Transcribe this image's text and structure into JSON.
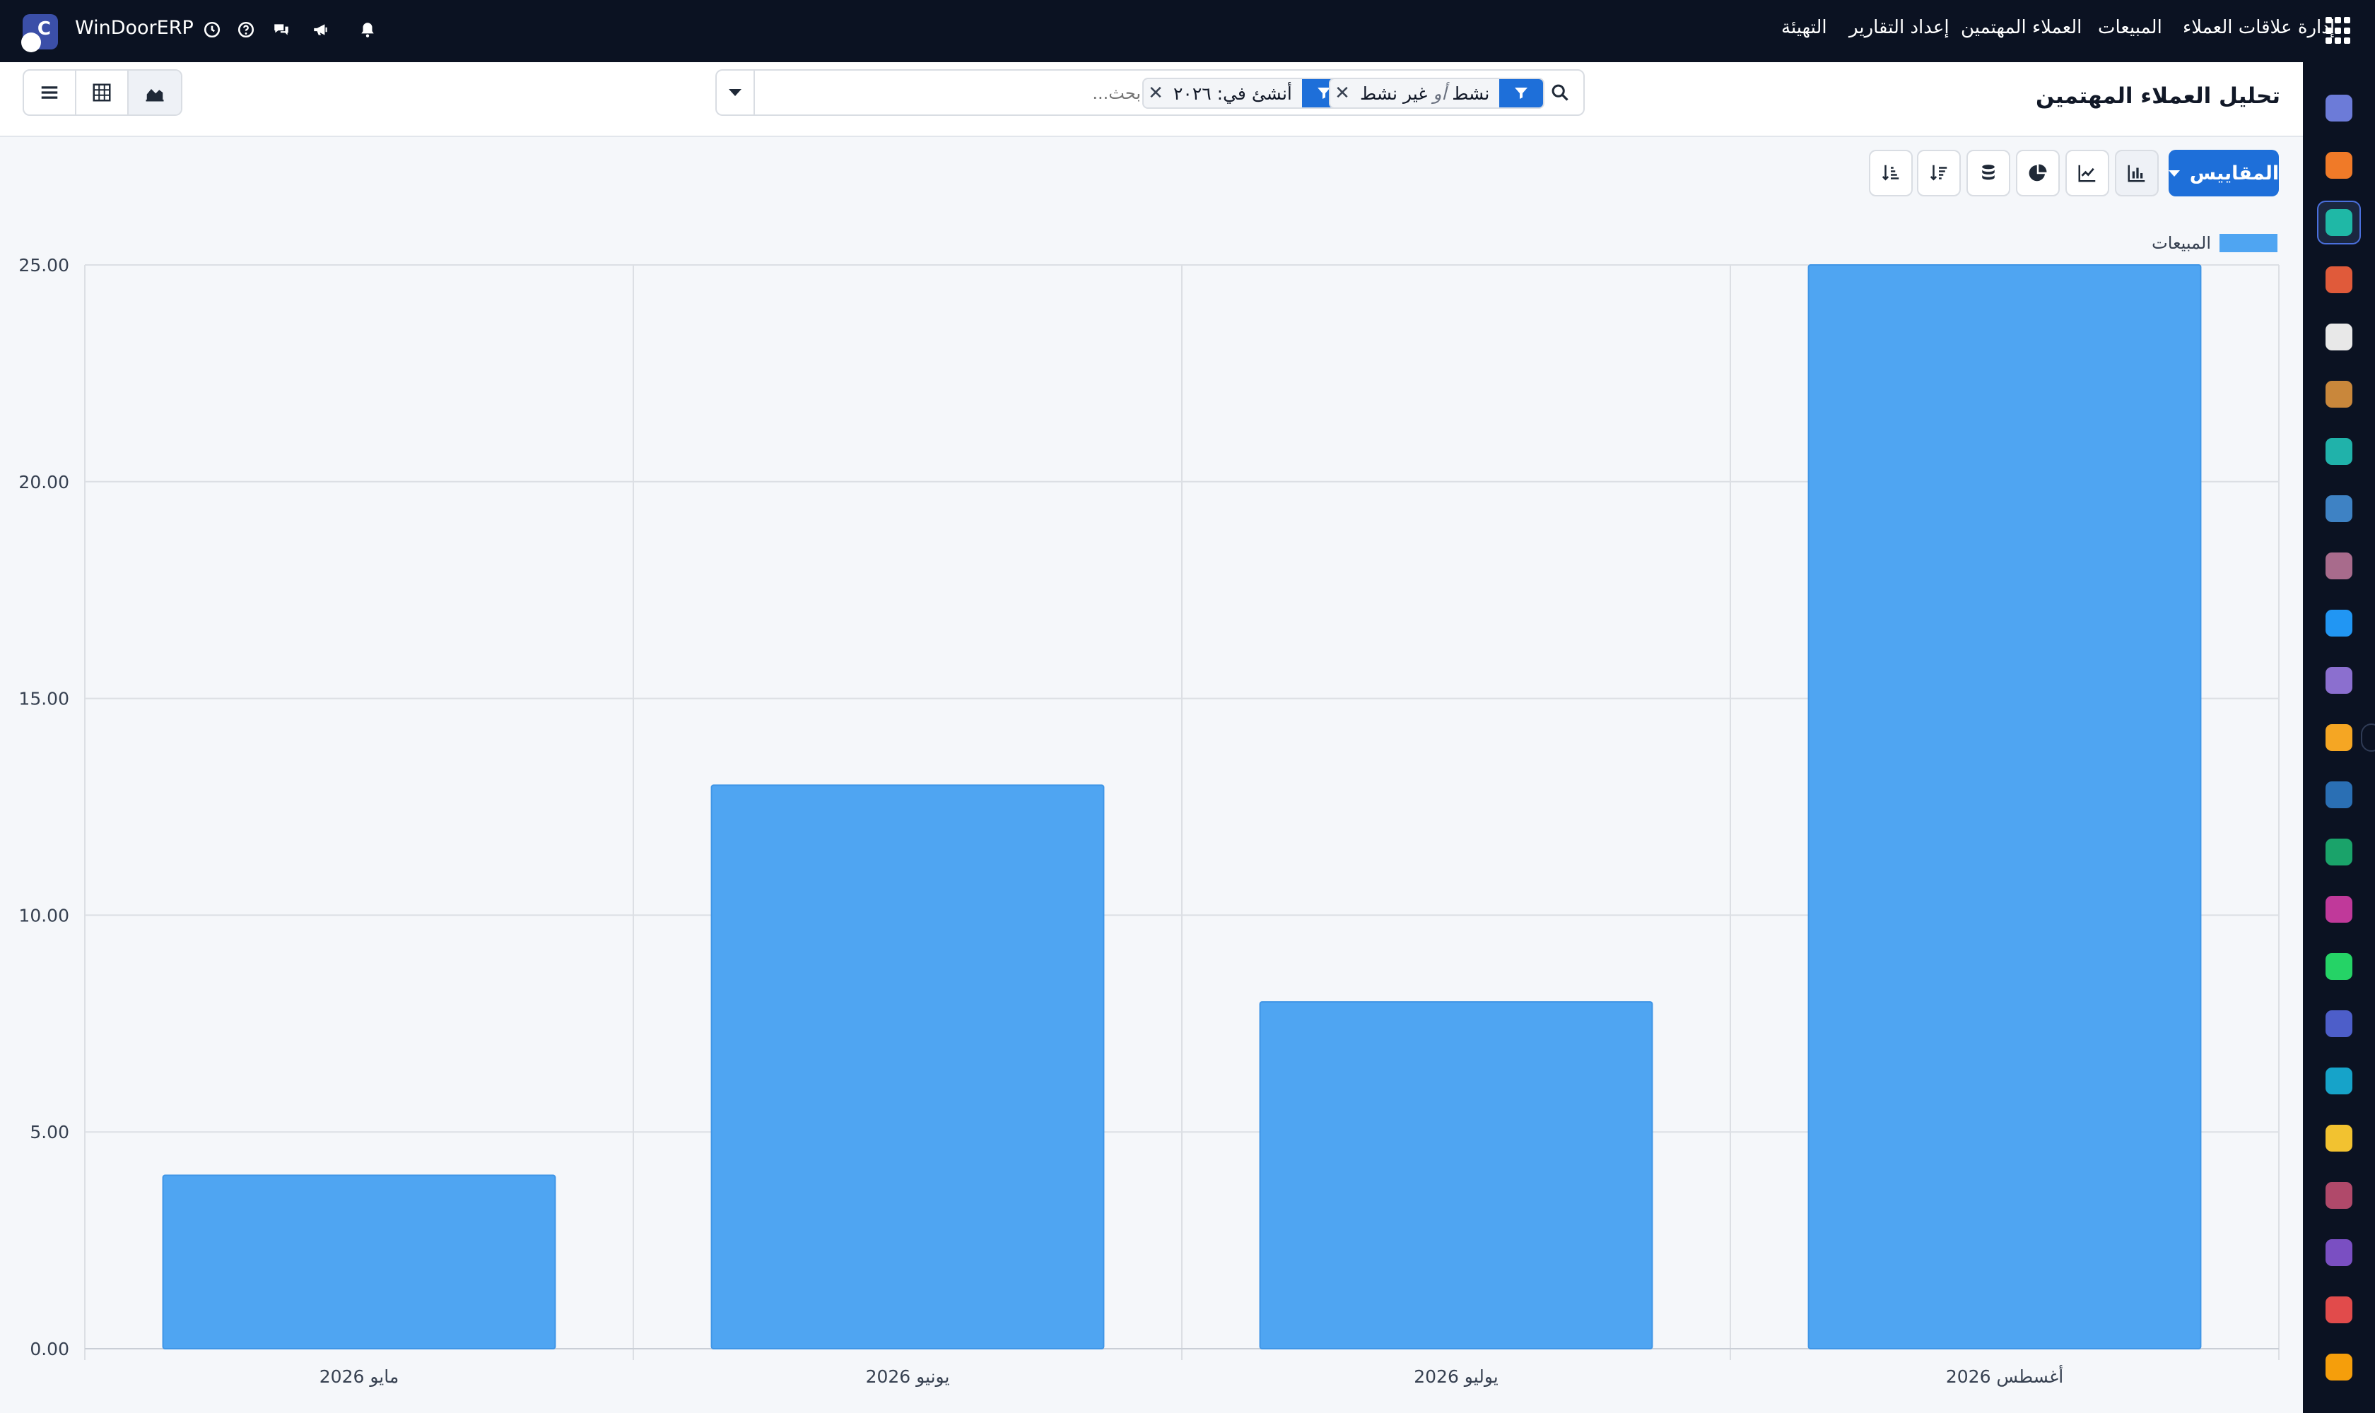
{
  "topbar": {
    "brand_letter": "C",
    "brand_name": "WinDoorERP",
    "menu": [
      "إدارة علاقات العملاء",
      "المبيعات",
      "العملاء المهتمين",
      "إعداد التقارير",
      "التهيئة"
    ],
    "icons": [
      "clock-icon",
      "help-icon",
      "chat-icon",
      "megaphone-icon",
      "bell-icon",
      "apps-grid-icon"
    ]
  },
  "control": {
    "title": "تحليل العملاء المهتمين",
    "search": {
      "placeholder": "بحث...",
      "facets": [
        {
          "label": "نشط",
          "separator": "أو",
          "label2": "غير نشط"
        },
        {
          "label": "أنشئ في: ٢٠٢٦"
        }
      ]
    },
    "views": [
      "list-view",
      "pivot-view",
      "graph-view"
    ],
    "active_view": "graph-view"
  },
  "graph_toolbar": {
    "measures_label": "المقاييس",
    "buttons": [
      "bar-chart",
      "line-chart",
      "pie-chart",
      "stacked",
      "sort-descending",
      "sort-ascending"
    ],
    "active": "bar-chart"
  },
  "colors": {
    "accent": "#1e6fd9",
    "bar": "#4fa5f2",
    "topbar": "#0b1222"
  },
  "chart_data": {
    "type": "bar",
    "categories": [
      "مايو 2026",
      "يونيو 2026",
      "يوليو 2026",
      "أغسطس 2026"
    ],
    "series": [
      {
        "name": "المبيعات",
        "values": [
          4,
          13,
          8,
          25
        ]
      }
    ],
    "ylim": [
      0,
      25
    ],
    "yticks": [
      "0.00",
      "5.00",
      "10.00",
      "15.00",
      "20.00",
      "25.00"
    ],
    "grid": true,
    "legend": "top-right",
    "direction": "rtl"
  },
  "sidebar_apps": [
    "mail-app",
    "chat-bubble-app",
    "crm-app",
    "reports-app",
    "inventory-app",
    "contacts-app",
    "todo-app",
    "knowledge-app",
    "products-app",
    "invoicing-app",
    "employees-app",
    "calendar-app",
    "sign-app",
    "recruitment-app",
    "dashboard-app",
    "whatsapp-app",
    "discuss-app",
    "planning-app",
    "telegram-app",
    "billing-app",
    "studio-app",
    "surveys-app",
    "settings-app"
  ]
}
